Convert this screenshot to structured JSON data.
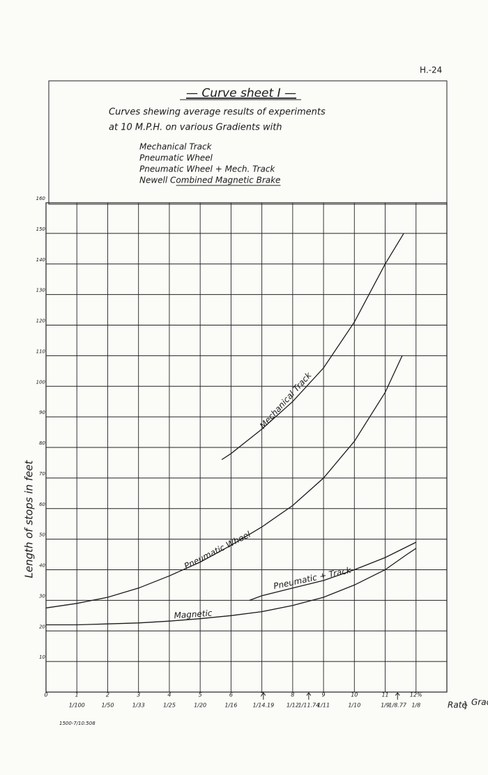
{
  "page": {
    "sheet_id": "H.-24",
    "footer": "1500-7/10.508"
  },
  "chart_data": {
    "type": "line",
    "title": "— Curve sheet I —",
    "subtitle": [
      "Curves shewing average results of experiments",
      "at 10 M.P.H. on various Gradients with"
    ],
    "y_label": "Length of stops in feet",
    "x_label": "Rate",
    "x_group_label": "Grades",
    "xlim": [
      0,
      13
    ],
    "ylim": [
      0,
      160
    ],
    "xticks": [
      0,
      1,
      2,
      3,
      4,
      5,
      6,
      7,
      8,
      9,
      10,
      11,
      {
        "value": 12,
        "label": "12%"
      }
    ],
    "yticks": [
      10,
      20,
      30,
      40,
      50,
      60,
      70,
      80,
      90,
      100,
      110,
      120,
      130,
      140,
      150,
      160
    ],
    "grade_ticks": [
      {
        "value": 1,
        "label": "1/100"
      },
      {
        "value": 2,
        "label": "1/50"
      },
      {
        "value": 3,
        "label": "1/33"
      },
      {
        "value": 4,
        "label": "1/25"
      },
      {
        "value": 5,
        "label": "1/20"
      },
      {
        "value": 6,
        "label": "1/16"
      },
      {
        "value": 7.05,
        "label": "1/14.19"
      },
      {
        "value": 8,
        "label": "1/12"
      },
      {
        "value": 8.52,
        "label": "1/11.74"
      },
      {
        "value": 9,
        "label": "1/11"
      },
      {
        "value": 10,
        "label": "1/10"
      },
      {
        "value": 11,
        "label": "1/9"
      },
      {
        "value": 11.4,
        "label": "1/8.77"
      },
      {
        "value": 12,
        "label": "1/8"
      }
    ],
    "grid": true,
    "series": [
      {
        "name": "Mechanical Track",
        "curve_label": "Mechanical Track",
        "color": "#1a1a1a",
        "x": [
          5.7,
          6,
          7,
          8,
          9,
          10,
          11,
          11.6
        ],
        "values": [
          76,
          78,
          86,
          95,
          106,
          121,
          140,
          150
        ]
      },
      {
        "name": "Pneumatic Wheel",
        "curve_label": "Pneumatic Wheel",
        "color": "#1a1a1a",
        "x": [
          0,
          1,
          2,
          3,
          4,
          5,
          6,
          7,
          8,
          9,
          10,
          11,
          11.55
        ],
        "values": [
          27.5,
          29,
          31,
          34,
          38,
          42.5,
          48,
          54,
          61,
          70,
          82,
          98,
          110
        ]
      },
      {
        "name": "Pneumatic Wheel + Mech. Track",
        "curve_label": "Pneumatic + Track",
        "color": "#1a1a1a",
        "x": [
          6.6,
          7,
          8,
          9,
          10,
          11,
          12
        ],
        "values": [
          30,
          31.5,
          34,
          36.5,
          40,
          44,
          49
        ]
      },
      {
        "name": "Newell Combined Magnetic Brake",
        "curve_label": "Magnetic",
        "color": "#1a1a1a",
        "x": [
          0,
          1,
          2,
          3,
          4,
          5,
          6,
          7,
          8,
          9,
          10,
          11,
          11.7,
          12
        ],
        "values": [
          22,
          22,
          22.3,
          22.6,
          23.2,
          24,
          25,
          26.3,
          28.3,
          31,
          35,
          40,
          45,
          47
        ]
      }
    ]
  }
}
